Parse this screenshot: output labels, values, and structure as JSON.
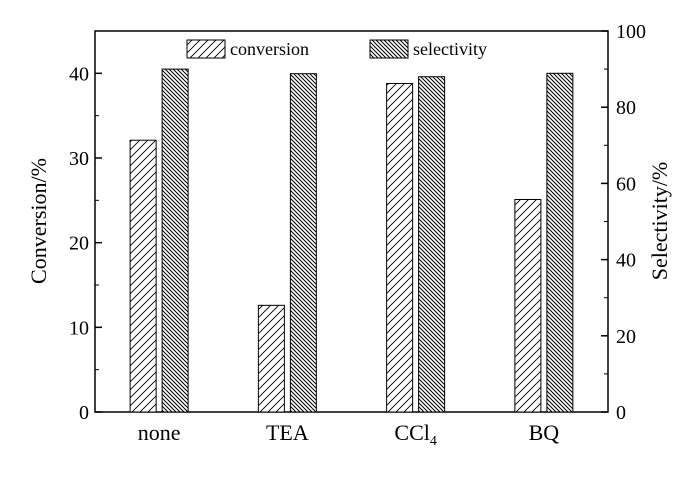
{
  "chart_data": {
    "type": "bar",
    "categories": [
      "none",
      "TEA",
      "CCl",
      "BQ"
    ],
    "category_subscripts": [
      "",
      "",
      "4",
      ""
    ],
    "series": [
      {
        "name": "conversion",
        "axis": "left",
        "values": [
          32.1,
          12.6,
          38.8,
          25.1
        ]
      },
      {
        "name": "selectivity",
        "axis": "right",
        "values": [
          90.0,
          88.8,
          88.0,
          88.9
        ]
      }
    ],
    "ylabel": "Conversion/%",
    "ylim": [
      0,
      45
    ],
    "yticks": [
      0,
      10,
      20,
      30,
      40
    ],
    "y2label": "Selectivity/%",
    "y2lim": [
      0,
      100
    ],
    "y2ticks": [
      0,
      20,
      40,
      60,
      80,
      100
    ],
    "legend_position": "top",
    "grid": false
  }
}
